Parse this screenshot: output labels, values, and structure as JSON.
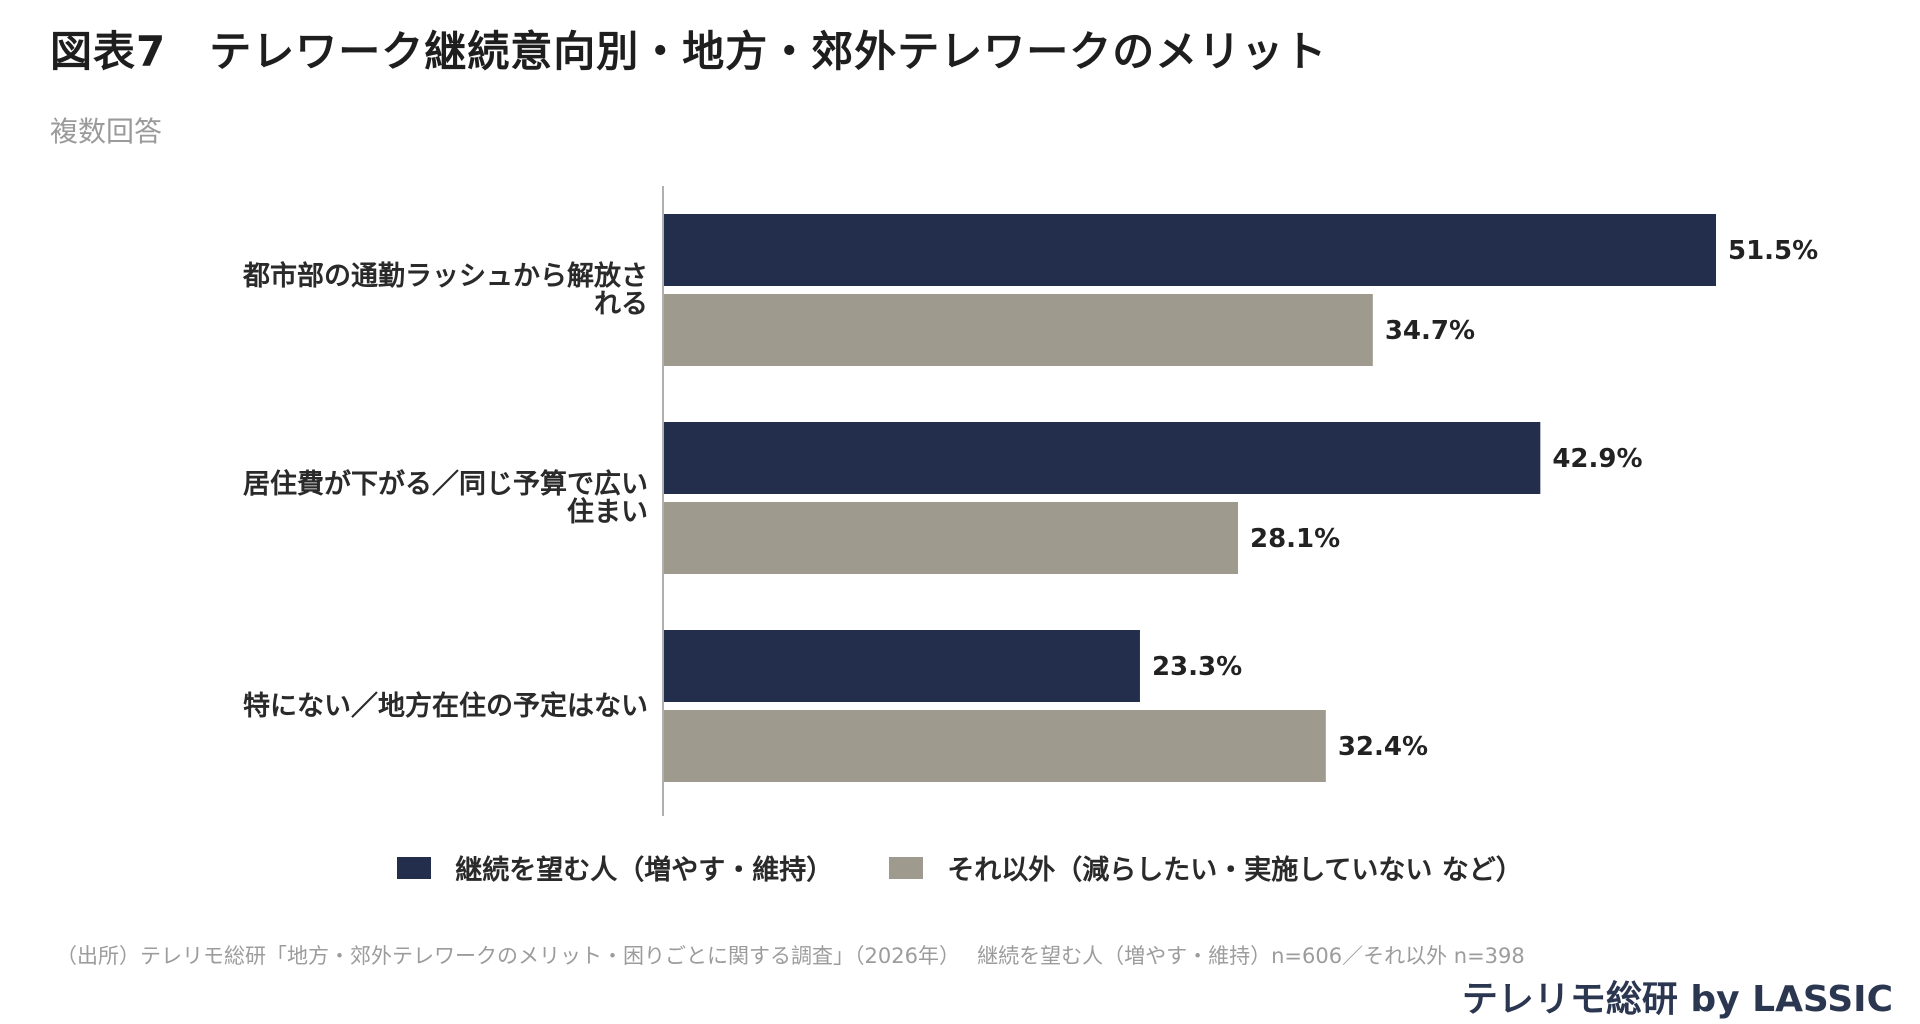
{
  "header": {
    "title": "図表7　テレワーク継続意向別・地方・郊外テレワークのメリット",
    "subtitle": "複数回答"
  },
  "colors": {
    "series1": "#222e4c",
    "series2": "#9e9b8e",
    "axis": "#b0b0b0"
  },
  "chart_data": {
    "type": "bar",
    "orientation": "horizontal",
    "categories": [
      [
        "都市部の通勤ラッシュから解放さ",
        "れる"
      ],
      [
        "居住費が下がる／同じ予算で広い",
        "住まい"
      ],
      [
        "特にない／地方在住の予定はない"
      ]
    ],
    "series": [
      {
        "name": "継続を望む人（増やす・維持）",
        "values": [
          51.5,
          42.9,
          23.3
        ],
        "labels": [
          "51.5%",
          "42.9%",
          "23.3%"
        ]
      },
      {
        "name": "それ以外（減らしたい・実施していない など）",
        "values": [
          34.7,
          28.1,
          32.4
        ],
        "labels": [
          "34.7%",
          "28.1%",
          "32.4%"
        ]
      }
    ],
    "xlim": [
      0,
      70
    ],
    "grid": false,
    "legend_position": "bottom-center"
  },
  "footer": {
    "source": "（出所）テレリモ総研「地方・郊外テレワークのメリット・困りごとに関する調査」（2026年）　 継続を望む人（増やす・維持）n=606／それ以外 n=398",
    "brand": "テレリモ総研 by LASSIC"
  }
}
